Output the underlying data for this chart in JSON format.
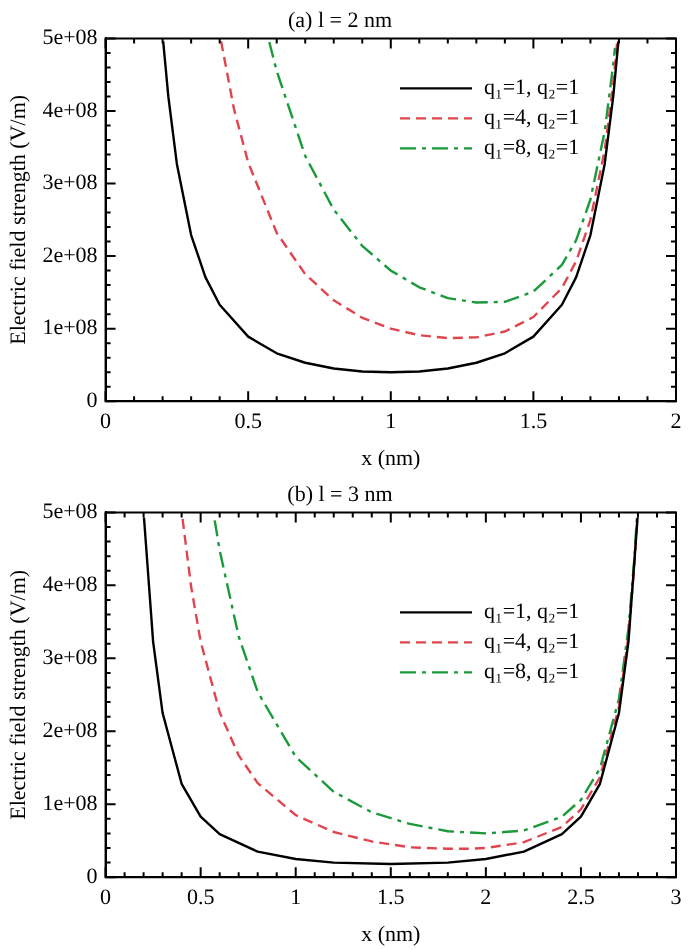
{
  "chart_data": [
    {
      "type": "line",
      "title": "(a) l = 2 nm",
      "xlabel": "x (nm)",
      "ylabel": "Electric field strength (V/m)",
      "xlim": [
        0,
        2
      ],
      "xticks": [
        0,
        0.5,
        1,
        1.5,
        2
      ],
      "ylim": [
        0,
        500000000
      ],
      "yticks": [
        0,
        {
          "value": 100000000,
          "label": "1e+08"
        },
        {
          "value": 200000000,
          "label": "2e+08"
        },
        {
          "value": 300000000,
          "label": "3e+08"
        },
        {
          "value": 400000000,
          "label": "4e+08"
        },
        {
          "value": 500000000,
          "label": "5e+08"
        }
      ],
      "grid": false,
      "legend": "right",
      "marker": "none",
      "series": [
        {
          "name": "q₁=1, q₂=1",
          "color": "#000000",
          "line_style": "solid",
          "x": [
            0.202,
            0.22,
            0.25,
            0.3,
            0.35,
            0.4,
            0.5,
            0.6,
            0.7,
            0.8,
            0.9,
            1.0,
            1.1,
            1.2,
            1.3,
            1.4,
            1.5,
            1.6,
            1.65,
            1.7,
            1.75,
            1.78,
            1.798
          ],
          "values": [
            496000000.0,
            420000000.0,
            327000000.0,
            229000000.0,
            171000000.0,
            133000000.0,
            89000000.0,
            66000000.0,
            53000000.0,
            45000000.0,
            41000000.0,
            40000000.0,
            41000000.0,
            45000000.0,
            53000000.0,
            66000000.0,
            89000000.0,
            133000000.0,
            171000000.0,
            229000000.0,
            327000000.0,
            420000000.0,
            496000000.0
          ]
        },
        {
          "name": "q₁=4, q₂=1",
          "color": "#e0454f",
          "line_style": "dashed",
          "x": [
            0.405,
            0.45,
            0.5,
            0.6,
            0.7,
            0.8,
            0.9,
            1.0,
            1.1,
            1.2,
            1.3,
            1.4,
            1.5,
            1.6,
            1.65,
            1.7,
            1.75,
            1.78,
            1.79,
            1.794
          ],
          "values": [
            496000000.0,
            403000000.0,
            329000000.0,
            232000000.0,
            175000000.0,
            139000000.0,
            115000000.0,
            100000000.0,
            91000000.0,
            87000000.0,
            88000000.0,
            96000000.0,
            116000000.0,
            156000000.0,
            193000000.0,
            250000000.0,
            346000000.0,
            438000000.0,
            478000000.0,
            496000000.0
          ]
        },
        {
          "name": "q₁=8, q₂=1",
          "color": "#1a9a3a",
          "line_style": "dashdot",
          "x": [
            0.574,
            0.6,
            0.7,
            0.8,
            0.9,
            1.0,
            1.1,
            1.2,
            1.3,
            1.4,
            1.5,
            1.6,
            1.65,
            1.7,
            1.75,
            1.78,
            1.786
          ],
          "values": [
            495000000.0,
            455000000.0,
            338000000.0,
            264000000.0,
            214000000.0,
            180000000.0,
            157000000.0,
            142000000.0,
            136000000.0,
            137000000.0,
            151000000.0,
            188000000.0,
            222000000.0,
            278000000.0,
            372000000.0,
            464000000.0,
            487000000.0
          ]
        }
      ]
    },
    {
      "type": "line",
      "title": "(b) l = 3 nm",
      "xlabel": "x (nm)",
      "ylabel": "Electric field strength (V/m)",
      "xlim": [
        0,
        3
      ],
      "xticks": [
        0,
        0.5,
        1,
        1.5,
        2,
        2.5,
        3
      ],
      "ylim": [
        0,
        500000000
      ],
      "yticks": [
        0,
        {
          "value": 100000000,
          "label": "1e+08"
        },
        {
          "value": 200000000,
          "label": "2e+08"
        },
        {
          "value": 300000000,
          "label": "3e+08"
        },
        {
          "value": 400000000,
          "label": "4e+08"
        },
        {
          "value": 500000000,
          "label": "5e+08"
        }
      ],
      "grid": false,
      "legend": "right",
      "marker": "none",
      "series": [
        {
          "name": "q₁=1, q₂=1",
          "color": "#000000",
          "line_style": "solid",
          "x": [
            0.202,
            0.25,
            0.3,
            0.4,
            0.5,
            0.6,
            0.8,
            1.0,
            1.2,
            1.5,
            1.8,
            2.0,
            2.2,
            2.4,
            2.5,
            2.6,
            2.7,
            2.75,
            2.798
          ],
          "values": [
            493000000.0,
            323000000.0,
            225000000.0,
            128000000.0,
            83000000.0,
            59000000.0,
            35000000.0,
            25000000.0,
            20000000.0,
            18000000.0,
            20000000.0,
            25000000.0,
            35000000.0,
            59000000.0,
            83000000.0,
            128000000.0,
            225000000.0,
            323000000.0,
            493000000.0
          ]
        },
        {
          "name": "q₁=4, q₂=1",
          "color": "#e0454f",
          "line_style": "dashed",
          "x": [
            0.405,
            0.45,
            0.5,
            0.6,
            0.7,
            0.8,
            1.0,
            1.2,
            1.4,
            1.6,
            1.8,
            1.9,
            2.0,
            2.2,
            2.4,
            2.5,
            2.6,
            2.7,
            2.75,
            2.78,
            2.796
          ],
          "values": [
            491000000.0,
            398000000.0,
            323000000.0,
            226000000.0,
            167000000.0,
            129000000.0,
            85000000.0,
            62000000.0,
            49000000.0,
            41000000.0,
            39000000.0,
            39000000.0,
            40000000.0,
            48000000.0,
            69000000.0,
            93000000.0,
            137000000.0,
            233000000.0,
            331000000.0,
            424000000.0,
            491000000.0
          ]
        },
        {
          "name": "q₁=8, q₂=1",
          "color": "#1a9a3a",
          "line_style": "dashdot",
          "x": [
            0.574,
            0.6,
            0.7,
            0.8,
            1.0,
            1.2,
            1.4,
            1.6,
            1.8,
            2.0,
            2.2,
            2.4,
            2.5,
            2.6,
            2.7,
            2.75,
            2.78,
            2.794
          ],
          "values": [
            489000000.0,
            448000000.0,
            330000000.0,
            254000000.0,
            165000000.0,
            117000000.0,
            89000000.0,
            73000000.0,
            63000000.0,
            60000000.0,
            64000000.0,
            83000000.0,
            106000000.0,
            149000000.0,
            244000000.0,
            341000000.0,
            434000000.0,
            492000000.0
          ]
        }
      ]
    }
  ]
}
